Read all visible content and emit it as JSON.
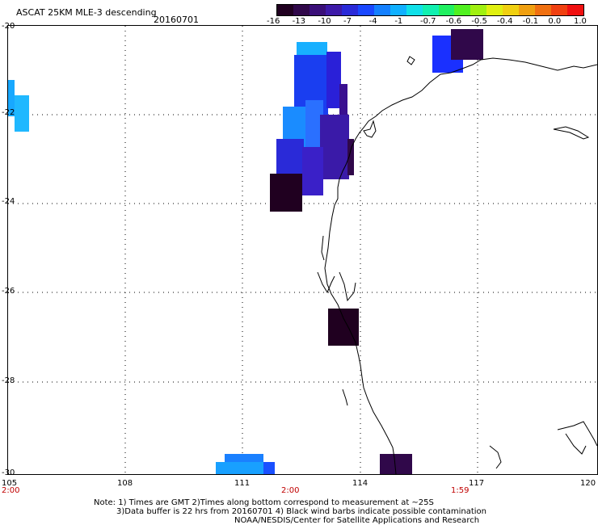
{
  "header": {
    "title": "ASCAT 25KM MLE-3 descending",
    "date": "20160701"
  },
  "colorbar": {
    "labels": [
      "-16",
      "-13",
      "-10",
      "-7",
      "-4",
      "-1",
      "-0.7",
      "-0.6",
      "-0.5",
      "-0.4",
      "-0.1",
      "0.0",
      "1.0"
    ],
    "colors": [
      "#200020",
      "#30084a",
      "#3a0f78",
      "#3d1aa8",
      "#2a2ad8",
      "#1a48ff",
      "#1480ff",
      "#10b0ff",
      "#10e0e8",
      "#10f0b0",
      "#20f060",
      "#50f020",
      "#a0f010",
      "#e0f010",
      "#f0d010",
      "#f0a010",
      "#f07010",
      "#f04010",
      "#f01010"
    ]
  },
  "map": {
    "lat_labels": [
      "-20",
      "-22",
      "-24",
      "-26",
      "-28",
      "-30"
    ],
    "lon_labels": [
      "105",
      "108",
      "111",
      "114",
      "117",
      "120"
    ],
    "time_labels": [
      "2:00",
      "2:00",
      "1:59"
    ],
    "lat_range": [
      -30,
      -20
    ],
    "lon_range": [
      105,
      120
    ]
  },
  "notes": {
    "line1": "Note: 1) Times are GMT 2)Times along bottom correspond to measurement at ~25S",
    "line2": "3)Data buffer is 22 hrs from 20160701 4) Black wind barbs indicate possible contamination",
    "line3": "NOAA/NESDIS/Center for Satellite Applications and Research"
  }
}
